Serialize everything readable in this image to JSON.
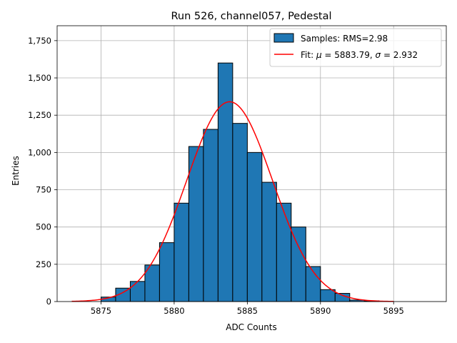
{
  "chart_data": {
    "type": "bar",
    "title": "Run 526, channel057, Pedestal",
    "xlabel": "ADC Counts",
    "ylabel": "Entries",
    "xlim": [
      5872.0,
      5898.6
    ],
    "ylim": [
      0,
      1850
    ],
    "xticks": [
      5875,
      5880,
      5885,
      5890,
      5895
    ],
    "yticks": [
      0,
      250,
      500,
      750,
      1000,
      1250,
      1500,
      1750
    ],
    "grid": true,
    "legend_position": "top-right",
    "histogram": {
      "name": "Samples: RMS=2.98",
      "color": "#1f77b4",
      "edgecolor": "#000000",
      "bin_width": 1,
      "bin_edges_start": 5873,
      "values": [
        0,
        0,
        30,
        90,
        135,
        245,
        395,
        660,
        1040,
        1155,
        1600,
        1195,
        1000,
        800,
        660,
        500,
        235,
        80,
        55,
        10,
        5,
        0,
        0,
        0
      ]
    },
    "fit": {
      "name": "Fit: μ = 5883.79, σ = 2.932",
      "name_prefix": "Fit: ",
      "mu_symbol": "μ",
      "mu_text": " = 5883.79, ",
      "sigma_symbol": "σ",
      "sigma_text": " = 2.932",
      "color": "#ff0000",
      "mu": 5883.79,
      "sigma": 2.932,
      "amplitude": 1340,
      "x_range": [
        5873,
        5895
      ]
    }
  }
}
